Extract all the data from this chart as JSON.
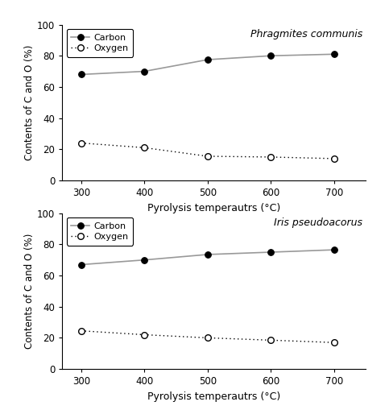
{
  "x": [
    300,
    400,
    500,
    600,
    700
  ],
  "top": {
    "title": "Phragmites communis",
    "carbon": [
      68,
      70,
      77.5,
      80,
      81
    ],
    "oxygen": [
      24,
      21,
      15.5,
      15,
      14
    ]
  },
  "bottom": {
    "title": "Iris pseudoacorus",
    "carbon": [
      67,
      70,
      73.5,
      75,
      76.5
    ],
    "oxygen": [
      24.5,
      22,
      20,
      18.5,
      17
    ]
  },
  "xlabel": "Pyrolysis temperautrs (°C)",
  "ylabel": "Contents of C and O (%)",
  "ylim": [
    0,
    100
  ],
  "yticks": [
    0,
    20,
    40,
    60,
    80,
    100
  ],
  "legend_carbon": "Carbon",
  "legend_oxygen": "Oxygen",
  "line_color": "#999999"
}
